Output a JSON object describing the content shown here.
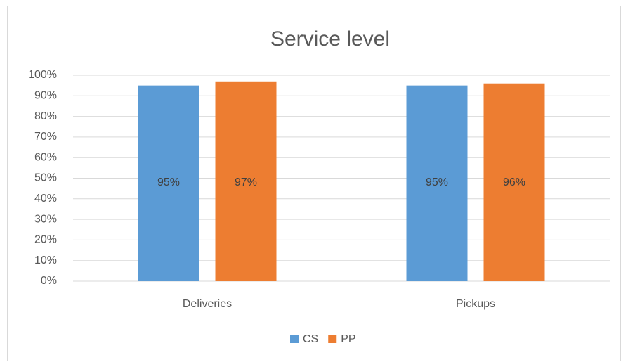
{
  "chart_data": {
    "type": "bar",
    "title": "Service level",
    "categories": [
      "Deliveries",
      "Pickups"
    ],
    "series": [
      {
        "name": "CS",
        "color": "#5b9bd5",
        "values": [
          95,
          95
        ],
        "value_labels": [
          "95%",
          "95%"
        ]
      },
      {
        "name": "PP",
        "color": "#ed7d31",
        "values": [
          97,
          96
        ],
        "value_labels": [
          "97%",
          "96%"
        ]
      }
    ],
    "ylim": [
      0,
      100
    ],
    "yticks": [
      {
        "value": 0,
        "label": "0%"
      },
      {
        "value": 10,
        "label": "10%"
      },
      {
        "value": 20,
        "label": "20%"
      },
      {
        "value": 30,
        "label": "30%"
      },
      {
        "value": 40,
        "label": "40%"
      },
      {
        "value": 50,
        "label": "50%"
      },
      {
        "value": 60,
        "label": "60%"
      },
      {
        "value": 70,
        "label": "70%"
      },
      {
        "value": 80,
        "label": "80%"
      },
      {
        "value": 90,
        "label": "90%"
      },
      {
        "value": 100,
        "label": "100%"
      }
    ],
    "grid": true,
    "legend": "bottom"
  }
}
